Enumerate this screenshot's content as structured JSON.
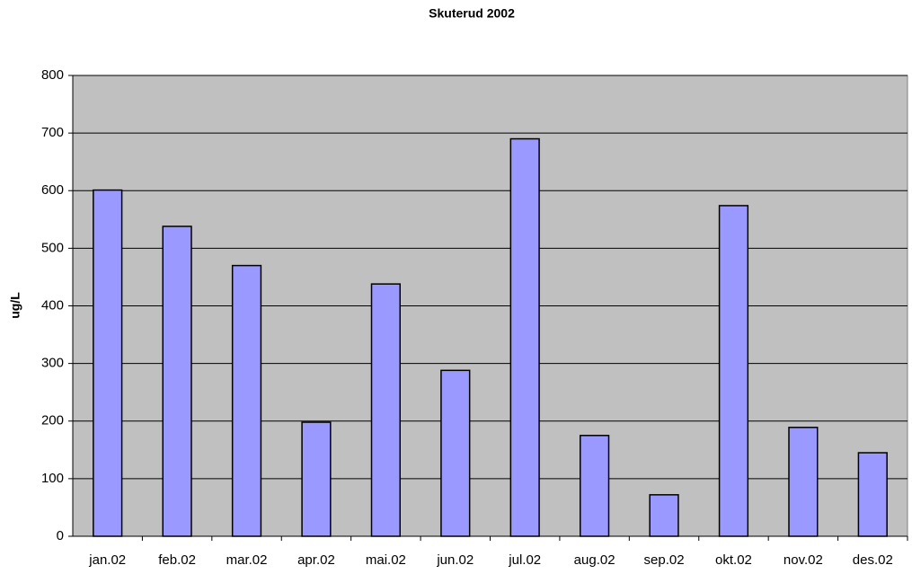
{
  "chart_data": {
    "type": "bar",
    "title": "Skuterud 2002",
    "y_label": "ug/L",
    "categories": [
      "jan.02",
      "feb.02",
      "mar.02",
      "apr.02",
      "mai.02",
      "jun.02",
      "jul.02",
      "aug.02",
      "sep.02",
      "okt.02",
      "nov.02",
      "des.02"
    ],
    "values": [
      601,
      538,
      470,
      198,
      438,
      288,
      690,
      175,
      72,
      574,
      189,
      145
    ],
    "color": "#9999ff",
    "plot_background": "#c0c0c0",
    "ylim": [
      0,
      800
    ],
    "yticks": [
      0,
      100,
      200,
      300,
      400,
      500,
      600,
      700,
      800
    ],
    "grid": true
  }
}
